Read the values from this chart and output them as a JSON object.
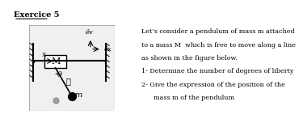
{
  "title": "Exercice 5",
  "bg_color": "#ffffff",
  "figure_bg": "#f0f0f0",
  "text_lines": [
    "Let’s consider a pendulum of mass m attached",
    "to a mass M  which is free to move along a line",
    "as shown in the figure below.",
    "1- Determine the number of degrees of liberty",
    "2- Give the expression of the position of the",
    "      mass m of the pendulum"
  ],
  "M_label": "M",
  "x_label": "x",
  "l_label": "ℓ",
  "theta_label": "θ",
  "m_label": "m",
  "ey_label": "êv",
  "ex_label": "êx"
}
